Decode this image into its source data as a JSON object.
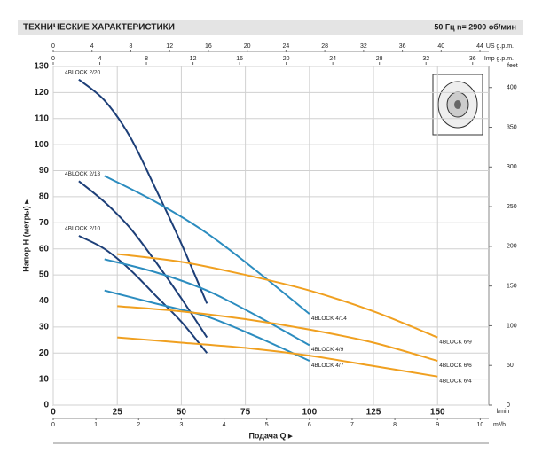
{
  "chart_data": {
    "type": "line",
    "title": "ТЕХНИЧЕСКИЕ ХАРАКТЕРИСТИКИ",
    "subtitle": "50 Гц   n= 2900 об/мин",
    "x_label": "Подача Q ▸",
    "y_label": "Напор Н (метры) ▸",
    "x_unit": "l/min",
    "xlim": [
      0,
      170
    ],
    "xticks": [
      0,
      25,
      50,
      75,
      100,
      125,
      150
    ],
    "ylim": [
      0,
      130
    ],
    "yticks": [
      0,
      10,
      20,
      30,
      40,
      50,
      60,
      70,
      80,
      90,
      100,
      110,
      120,
      130
    ],
    "grid": true,
    "us_gpm_unit": "US g.p.m.",
    "us_gpm_lim": [
      0,
      44.91
    ],
    "us_gpm_ticks": [
      0,
      4,
      8,
      12,
      16,
      20,
      24,
      28,
      32,
      36,
      40,
      44
    ],
    "imp_gpm_unit": "Imp g.p.m.",
    "imp_gpm_lim": [
      0,
      37.39
    ],
    "imp_gpm_ticks": [
      0,
      4,
      8,
      12,
      16,
      20,
      24,
      28,
      32,
      36
    ],
    "m3h_unit": "m³/h",
    "m3h_lim": [
      0,
      10.2
    ],
    "m3h_ticks": [
      0,
      1,
      2,
      3,
      4,
      5,
      6,
      7,
      8,
      9,
      10
    ],
    "feet_unit": "feet",
    "y2lim": [
      0,
      426.5
    ],
    "y2ticks": [
      0,
      50,
      100,
      150,
      200,
      250,
      300,
      350,
      400
    ],
    "series": [
      {
        "name": "4BLOCK 2/20",
        "color": "#1d3f78",
        "x": [
          10,
          20,
          30,
          40,
          50,
          60
        ],
        "values": [
          125,
          117,
          103,
          83,
          62,
          39
        ]
      },
      {
        "name": "4BLOCK 2/13",
        "color": "#1d3f78",
        "x": [
          10,
          20,
          30,
          40,
          50,
          60
        ],
        "values": [
          86,
          78,
          68,
          55,
          41,
          26
        ]
      },
      {
        "name": "4BLOCK 2/10",
        "color": "#1d3f78",
        "x": [
          10,
          20,
          30,
          40,
          50,
          60
        ],
        "values": [
          65,
          60,
          52,
          42,
          32,
          20
        ]
      },
      {
        "name": "4BLOCK 4/14",
        "color": "#2b8cbf",
        "x": [
          20,
          40,
          60,
          80,
          100
        ],
        "values": [
          88,
          78,
          66,
          51,
          35
        ]
      },
      {
        "name": "4BLOCK 4/9",
        "color": "#2b8cbf",
        "x": [
          20,
          40,
          60,
          80,
          100
        ],
        "values": [
          56,
          51,
          44,
          34,
          23
        ]
      },
      {
        "name": "4BLOCK 4/7",
        "color": "#2b8cbf",
        "x": [
          20,
          40,
          60,
          80,
          100
        ],
        "values": [
          44,
          39,
          34,
          26,
          17
        ]
      },
      {
        "name": "4BLOCK 6/9",
        "color": "#f0a020",
        "x": [
          25,
          50,
          75,
          100,
          125,
          150
        ],
        "values": [
          58,
          55,
          50,
          44,
          36,
          26
        ]
      },
      {
        "name": "4BLOCK 6/6",
        "color": "#f0a020",
        "x": [
          25,
          50,
          75,
          100,
          125,
          150
        ],
        "values": [
          38,
          36,
          33,
          29,
          24,
          17
        ]
      },
      {
        "name": "4BLOCK 6/4",
        "color": "#f0a020",
        "x": [
          25,
          50,
          75,
          100,
          125,
          150
        ],
        "values": [
          26,
          24,
          22,
          19,
          15,
          11
        ]
      }
    ]
  }
}
